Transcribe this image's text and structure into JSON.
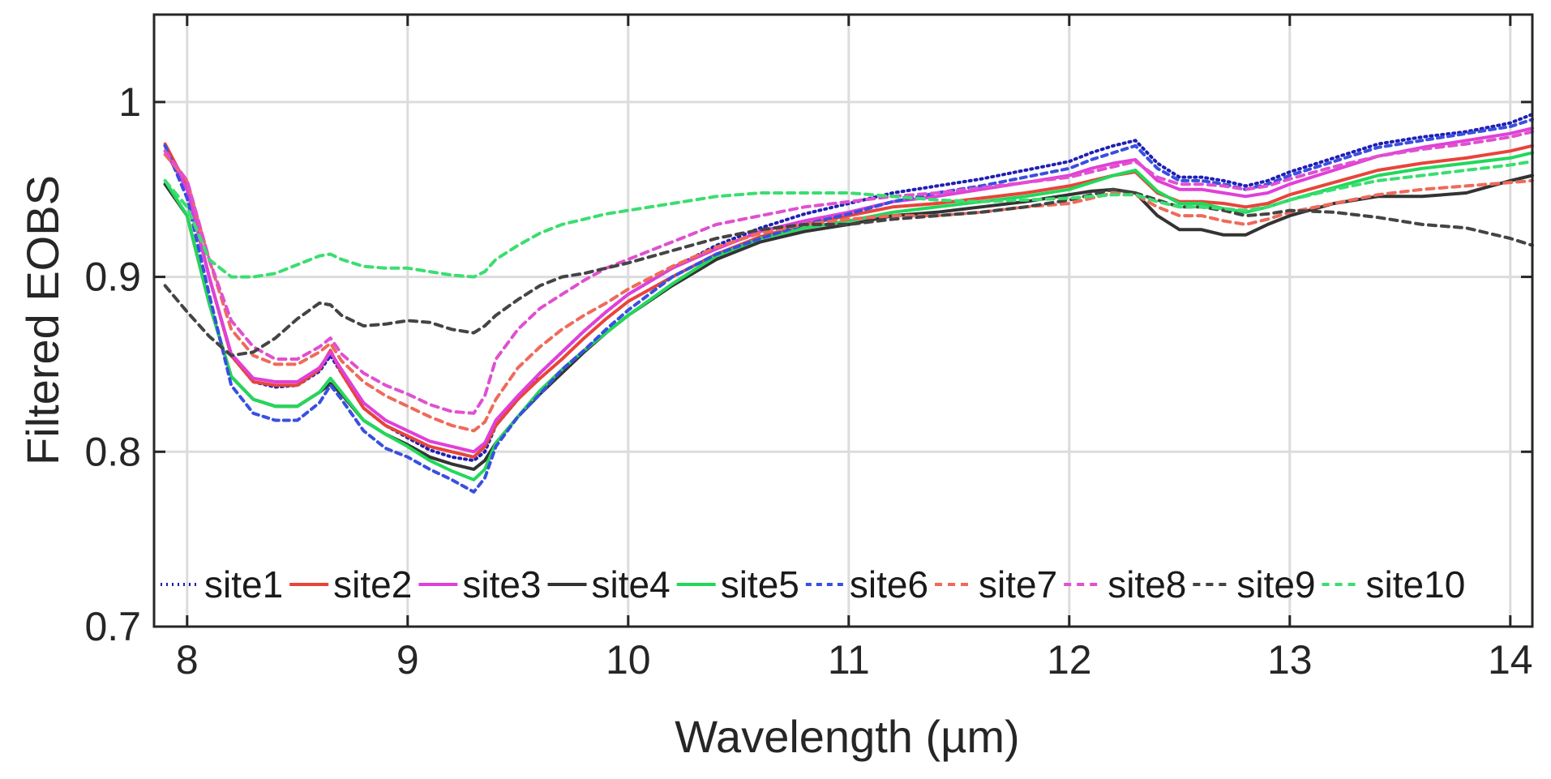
{
  "chart_data": {
    "type": "line",
    "title": "",
    "xlabel": "Wavelength (µm)",
    "ylabel": "Filtered EOBS",
    "xlim": [
      7.85,
      14.1
    ],
    "ylim": [
      0.7,
      1.05
    ],
    "grid": true,
    "legend_position": "bottom, single row inside axes",
    "x_ticks": [
      8,
      9,
      10,
      11,
      12,
      13,
      14
    ],
    "x_tick_labels": [
      "8",
      "9",
      "10",
      "11",
      "12",
      "13",
      "14"
    ],
    "y_ticks": [
      0.7,
      0.8,
      0.9,
      1.0
    ],
    "y_tick_labels": [
      "0.7",
      "0.8",
      "0.9",
      "1"
    ],
    "x": [
      7.9,
      8.0,
      8.1,
      8.2,
      8.3,
      8.4,
      8.5,
      8.6,
      8.65,
      8.7,
      8.8,
      8.9,
      9.0,
      9.1,
      9.2,
      9.3,
      9.35,
      9.4,
      9.5,
      9.6,
      9.7,
      9.8,
      9.9,
      10.0,
      10.2,
      10.4,
      10.6,
      10.8,
      11.0,
      11.2,
      11.4,
      11.6,
      11.8,
      12.0,
      12.1,
      12.2,
      12.3,
      12.4,
      12.5,
      12.6,
      12.7,
      12.8,
      12.9,
      13.0,
      13.2,
      13.4,
      13.6,
      13.8,
      14.0,
      14.1
    ],
    "series": [
      {
        "name": "site1",
        "color": "#1f1fb4",
        "dash": "2,5",
        "values": [
          0.975,
          0.95,
          0.9,
          0.855,
          0.84,
          0.837,
          0.838,
          0.846,
          0.855,
          0.845,
          0.825,
          0.815,
          0.808,
          0.801,
          0.797,
          0.795,
          0.8,
          0.815,
          0.83,
          0.845,
          0.857,
          0.869,
          0.88,
          0.89,
          0.905,
          0.918,
          0.928,
          0.936,
          0.942,
          0.948,
          0.952,
          0.956,
          0.961,
          0.966,
          0.971,
          0.975,
          0.978,
          0.965,
          0.957,
          0.957,
          0.955,
          0.952,
          0.955,
          0.96,
          0.968,
          0.976,
          0.98,
          0.983,
          0.988,
          0.993
        ]
      },
      {
        "name": "site2",
        "color": "#e8443a",
        "dash": "",
        "values": [
          0.976,
          0.952,
          0.9,
          0.855,
          0.84,
          0.838,
          0.838,
          0.847,
          0.858,
          0.845,
          0.825,
          0.815,
          0.809,
          0.803,
          0.8,
          0.797,
          0.803,
          0.815,
          0.83,
          0.842,
          0.853,
          0.865,
          0.876,
          0.886,
          0.9,
          0.913,
          0.923,
          0.93,
          0.935,
          0.94,
          0.942,
          0.945,
          0.948,
          0.952,
          0.955,
          0.958,
          0.96,
          0.948,
          0.943,
          0.943,
          0.942,
          0.94,
          0.942,
          0.947,
          0.954,
          0.961,
          0.965,
          0.968,
          0.972,
          0.975
        ]
      },
      {
        "name": "site3",
        "color": "#e040d8",
        "dash": "",
        "values": [
          0.972,
          0.95,
          0.9,
          0.856,
          0.842,
          0.84,
          0.84,
          0.848,
          0.857,
          0.847,
          0.828,
          0.818,
          0.812,
          0.806,
          0.803,
          0.8,
          0.805,
          0.818,
          0.832,
          0.845,
          0.857,
          0.869,
          0.88,
          0.89,
          0.905,
          0.916,
          0.926,
          0.932,
          0.937,
          0.943,
          0.946,
          0.95,
          0.954,
          0.958,
          0.962,
          0.965,
          0.967,
          0.955,
          0.95,
          0.95,
          0.948,
          0.946,
          0.948,
          0.953,
          0.961,
          0.969,
          0.974,
          0.978,
          0.982,
          0.985
        ]
      },
      {
        "name": "site4",
        "color": "#333333",
        "dash": "",
        "values": [
          0.953,
          0.935,
          0.885,
          0.843,
          0.83,
          0.826,
          0.826,
          0.834,
          0.839,
          0.833,
          0.818,
          0.81,
          0.804,
          0.797,
          0.793,
          0.79,
          0.795,
          0.805,
          0.82,
          0.833,
          0.845,
          0.857,
          0.868,
          0.878,
          0.895,
          0.91,
          0.92,
          0.926,
          0.93,
          0.935,
          0.937,
          0.94,
          0.943,
          0.947,
          0.949,
          0.95,
          0.948,
          0.935,
          0.927,
          0.927,
          0.924,
          0.924,
          0.93,
          0.935,
          0.942,
          0.946,
          0.946,
          0.948,
          0.955,
          0.958
        ]
      },
      {
        "name": "site5",
        "color": "#22d85a",
        "dash": "",
        "values": [
          0.955,
          0.935,
          0.885,
          0.843,
          0.83,
          0.826,
          0.826,
          0.834,
          0.842,
          0.834,
          0.818,
          0.81,
          0.803,
          0.795,
          0.789,
          0.784,
          0.79,
          0.805,
          0.82,
          0.835,
          0.847,
          0.858,
          0.868,
          0.878,
          0.896,
          0.912,
          0.922,
          0.928,
          0.932,
          0.937,
          0.94,
          0.943,
          0.946,
          0.95,
          0.954,
          0.958,
          0.961,
          0.949,
          0.942,
          0.942,
          0.939,
          0.937,
          0.94,
          0.944,
          0.951,
          0.958,
          0.962,
          0.965,
          0.968,
          0.971
        ]
      },
      {
        "name": "site6",
        "color": "#3a4fe0",
        "dash": "7,6",
        "values": [
          0.975,
          0.945,
          0.89,
          0.838,
          0.822,
          0.818,
          0.818,
          0.828,
          0.838,
          0.83,
          0.812,
          0.802,
          0.797,
          0.79,
          0.784,
          0.777,
          0.785,
          0.803,
          0.82,
          0.833,
          0.847,
          0.858,
          0.87,
          0.881,
          0.9,
          0.913,
          0.922,
          0.93,
          0.936,
          0.943,
          0.948,
          0.952,
          0.957,
          0.962,
          0.967,
          0.971,
          0.975,
          0.962,
          0.955,
          0.955,
          0.953,
          0.95,
          0.953,
          0.958,
          0.966,
          0.974,
          0.978,
          0.982,
          0.986,
          0.99
        ]
      },
      {
        "name": "site7",
        "color": "#ef6a5a",
        "dash": "9,7",
        "values": [
          0.97,
          0.955,
          0.91,
          0.87,
          0.855,
          0.85,
          0.85,
          0.857,
          0.862,
          0.852,
          0.84,
          0.832,
          0.826,
          0.82,
          0.815,
          0.812,
          0.817,
          0.83,
          0.848,
          0.86,
          0.87,
          0.878,
          0.885,
          0.893,
          0.906,
          0.917,
          0.925,
          0.93,
          0.933,
          0.935,
          0.935,
          0.937,
          0.94,
          0.942,
          0.945,
          0.948,
          0.947,
          0.94,
          0.935,
          0.935,
          0.932,
          0.93,
          0.933,
          0.937,
          0.942,
          0.947,
          0.95,
          0.952,
          0.954,
          0.955
        ]
      },
      {
        "name": "site8",
        "color": "#e050d0",
        "dash": "9,7",
        "values": [
          0.972,
          0.955,
          0.91,
          0.875,
          0.86,
          0.853,
          0.853,
          0.86,
          0.865,
          0.856,
          0.845,
          0.838,
          0.833,
          0.827,
          0.823,
          0.822,
          0.832,
          0.853,
          0.87,
          0.882,
          0.89,
          0.898,
          0.905,
          0.91,
          0.92,
          0.93,
          0.935,
          0.94,
          0.943,
          0.946,
          0.948,
          0.951,
          0.954,
          0.957,
          0.96,
          0.963,
          0.966,
          0.957,
          0.953,
          0.953,
          0.952,
          0.95,
          0.952,
          0.956,
          0.963,
          0.969,
          0.973,
          0.976,
          0.98,
          0.983
        ]
      },
      {
        "name": "site9",
        "color": "#444444",
        "dash": "9,7",
        "values": [
          0.895,
          0.88,
          0.866,
          0.855,
          0.857,
          0.865,
          0.876,
          0.885,
          0.884,
          0.878,
          0.872,
          0.873,
          0.875,
          0.874,
          0.87,
          0.868,
          0.872,
          0.878,
          0.887,
          0.895,
          0.9,
          0.902,
          0.905,
          0.908,
          0.915,
          0.922,
          0.927,
          0.93,
          0.93,
          0.933,
          0.935,
          0.937,
          0.94,
          0.944,
          0.947,
          0.95,
          0.948,
          0.944,
          0.94,
          0.94,
          0.938,
          0.935,
          0.936,
          0.938,
          0.937,
          0.934,
          0.93,
          0.928,
          0.922,
          0.918
        ]
      },
      {
        "name": "site10",
        "color": "#3ade70",
        "dash": "9,7",
        "values": [
          0.955,
          0.94,
          0.91,
          0.9,
          0.9,
          0.902,
          0.907,
          0.912,
          0.913,
          0.91,
          0.906,
          0.905,
          0.905,
          0.903,
          0.901,
          0.9,
          0.903,
          0.91,
          0.918,
          0.925,
          0.93,
          0.933,
          0.936,
          0.938,
          0.942,
          0.946,
          0.948,
          0.948,
          0.948,
          0.946,
          0.944,
          0.943,
          0.944,
          0.945,
          0.946,
          0.947,
          0.947,
          0.943,
          0.94,
          0.94,
          0.939,
          0.938,
          0.94,
          0.944,
          0.95,
          0.955,
          0.958,
          0.961,
          0.964,
          0.966
        ]
      }
    ]
  }
}
